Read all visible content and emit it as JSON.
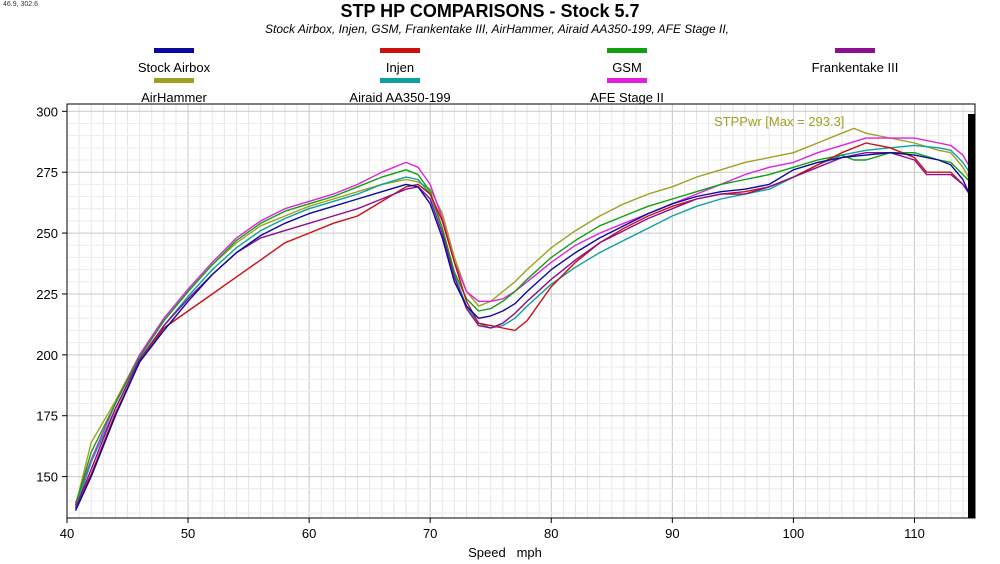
{
  "cursor_readout": "46.9, 302.6",
  "chart_data": {
    "type": "line",
    "title": "STP HP COMPARISONS - Stock 5.7",
    "subtitle": "Stock Airbox, Injen, GSM, Frankentake III, AirHammer, Airaid AA350-199, AFE Stage II,",
    "xlabel": "Speed   mph",
    "ylabel": "",
    "xlim": [
      40,
      115
    ],
    "ylim": [
      133,
      303
    ],
    "x_ticks": [
      40,
      50,
      60,
      70,
      80,
      90,
      100,
      110
    ],
    "y_ticks": [
      150,
      175,
      200,
      225,
      250,
      275,
      300
    ],
    "grid": true,
    "legend_position": "top",
    "annotation": {
      "text": "STPPwr [Max = 293.3]",
      "color": "#a0a020"
    },
    "series": [
      {
        "name": "Stock Airbox",
        "color": "#0a0aa0",
        "points": [
          [
            40.7,
            136
          ],
          [
            42,
            150
          ],
          [
            44,
            175
          ],
          [
            46,
            197
          ],
          [
            48,
            210
          ],
          [
            50,
            222
          ],
          [
            52,
            233
          ],
          [
            54,
            242
          ],
          [
            56,
            249
          ],
          [
            58,
            254
          ],
          [
            60,
            258
          ],
          [
            62,
            261
          ],
          [
            64,
            264
          ],
          [
            66,
            267
          ],
          [
            68,
            270
          ],
          [
            69,
            269
          ],
          [
            70,
            262
          ],
          [
            71,
            248
          ],
          [
            72,
            230
          ],
          [
            73,
            220
          ],
          [
            74,
            215
          ],
          [
            75,
            216
          ],
          [
            76,
            218
          ],
          [
            77,
            221
          ],
          [
            78,
            226
          ],
          [
            80,
            235
          ],
          [
            82,
            242
          ],
          [
            84,
            248
          ],
          [
            86,
            253
          ],
          [
            88,
            258
          ],
          [
            90,
            262
          ],
          [
            92,
            265
          ],
          [
            94,
            267
          ],
          [
            96,
            268
          ],
          [
            98,
            270
          ],
          [
            100,
            276
          ],
          [
            102,
            279
          ],
          [
            104,
            281
          ],
          [
            106,
            282
          ],
          [
            108,
            283
          ],
          [
            110,
            282
          ],
          [
            112,
            280
          ],
          [
            113,
            278
          ],
          [
            114,
            272
          ],
          [
            114.8,
            263
          ]
        ]
      },
      {
        "name": "Injen",
        "color": "#cc1010",
        "points": [
          [
            40.7,
            137
          ],
          [
            42,
            151
          ],
          [
            44,
            176
          ],
          [
            46,
            197
          ],
          [
            48,
            211
          ],
          [
            50,
            218
          ],
          [
            52,
            225
          ],
          [
            54,
            232
          ],
          [
            56,
            239
          ],
          [
            58,
            246
          ],
          [
            60,
            250
          ],
          [
            62,
            254
          ],
          [
            64,
            257
          ],
          [
            66,
            263
          ],
          [
            68,
            269
          ],
          [
            69,
            270
          ],
          [
            70,
            266
          ],
          [
            71,
            255
          ],
          [
            72,
            238
          ],
          [
            73,
            222
          ],
          [
            74,
            213
          ],
          [
            75,
            212
          ],
          [
            76,
            211
          ],
          [
            77,
            210
          ],
          [
            78,
            214
          ],
          [
            80,
            228
          ],
          [
            82,
            238
          ],
          [
            84,
            246
          ],
          [
            86,
            252
          ],
          [
            88,
            257
          ],
          [
            90,
            261
          ],
          [
            92,
            264
          ],
          [
            94,
            266
          ],
          [
            96,
            267
          ],
          [
            98,
            269
          ],
          [
            100,
            273
          ],
          [
            102,
            278
          ],
          [
            104,
            283
          ],
          [
            106,
            287
          ],
          [
            108,
            285
          ],
          [
            110,
            281
          ],
          [
            111,
            275
          ],
          [
            113,
            275
          ],
          [
            114,
            270
          ],
          [
            114.8,
            265
          ]
        ]
      },
      {
        "name": "GSM",
        "color": "#10a010",
        "points": [
          [
            40.7,
            138
          ],
          [
            42,
            160
          ],
          [
            44,
            180
          ],
          [
            46,
            199
          ],
          [
            48,
            214
          ],
          [
            50,
            226
          ],
          [
            52,
            237
          ],
          [
            54,
            247
          ],
          [
            56,
            254
          ],
          [
            58,
            259
          ],
          [
            60,
            262
          ],
          [
            62,
            265
          ],
          [
            64,
            269
          ],
          [
            66,
            273
          ],
          [
            68,
            276
          ],
          [
            69,
            274
          ],
          [
            70,
            267
          ],
          [
            71,
            252
          ],
          [
            72,
            234
          ],
          [
            73,
            223
          ],
          [
            74,
            218
          ],
          [
            75,
            219
          ],
          [
            76,
            222
          ],
          [
            77,
            226
          ],
          [
            78,
            231
          ],
          [
            80,
            240
          ],
          [
            82,
            247
          ],
          [
            84,
            253
          ],
          [
            86,
            257
          ],
          [
            88,
            261
          ],
          [
            90,
            264
          ],
          [
            92,
            267
          ],
          [
            94,
            270
          ],
          [
            96,
            272
          ],
          [
            98,
            274
          ],
          [
            100,
            277
          ],
          [
            102,
            280
          ],
          [
            104,
            282
          ],
          [
            105,
            280
          ],
          [
            106,
            280
          ],
          [
            108,
            283
          ],
          [
            110,
            283
          ],
          [
            112,
            280
          ],
          [
            113,
            279
          ],
          [
            114,
            274
          ],
          [
            114.8,
            270
          ]
        ]
      },
      {
        "name": "Frankentake III",
        "color": "#8a1090",
        "points": [
          [
            40.7,
            137
          ],
          [
            42,
            153
          ],
          [
            44,
            178
          ],
          [
            46,
            198
          ],
          [
            48,
            212
          ],
          [
            50,
            223
          ],
          [
            52,
            233
          ],
          [
            54,
            242
          ],
          [
            56,
            248
          ],
          [
            58,
            251
          ],
          [
            60,
            254
          ],
          [
            62,
            257
          ],
          [
            64,
            260
          ],
          [
            66,
            264
          ],
          [
            68,
            268
          ],
          [
            69,
            269
          ],
          [
            70,
            264
          ],
          [
            71,
            250
          ],
          [
            72,
            232
          ],
          [
            73,
            219
          ],
          [
            74,
            212
          ],
          [
            75,
            211
          ],
          [
            76,
            213
          ],
          [
            77,
            217
          ],
          [
            78,
            222
          ],
          [
            80,
            231
          ],
          [
            82,
            239
          ],
          [
            84,
            246
          ],
          [
            86,
            251
          ],
          [
            88,
            256
          ],
          [
            90,
            260
          ],
          [
            92,
            264
          ],
          [
            94,
            266
          ],
          [
            96,
            266
          ],
          [
            98,
            269
          ],
          [
            100,
            273
          ],
          [
            102,
            277
          ],
          [
            104,
            281
          ],
          [
            106,
            283
          ],
          [
            108,
            283
          ],
          [
            110,
            280
          ],
          [
            111,
            274
          ],
          [
            113,
            274
          ],
          [
            114,
            270
          ],
          [
            114.8,
            264
          ]
        ]
      },
      {
        "name": "AirHammer",
        "color": "#a0a020",
        "points": [
          [
            40.7,
            138
          ],
          [
            42,
            164
          ],
          [
            44,
            181
          ],
          [
            46,
            200
          ],
          [
            48,
            214
          ],
          [
            50,
            226
          ],
          [
            52,
            237
          ],
          [
            54,
            246
          ],
          [
            56,
            253
          ],
          [
            58,
            257
          ],
          [
            60,
            261
          ],
          [
            62,
            264
          ],
          [
            64,
            267
          ],
          [
            66,
            270
          ],
          [
            68,
            272
          ],
          [
            69,
            271
          ],
          [
            70,
            268
          ],
          [
            71,
            258
          ],
          [
            72,
            240
          ],
          [
            73,
            226
          ],
          [
            74,
            220
          ],
          [
            75,
            222
          ],
          [
            76,
            226
          ],
          [
            77,
            230
          ],
          [
            78,
            235
          ],
          [
            80,
            244
          ],
          [
            82,
            251
          ],
          [
            84,
            257
          ],
          [
            86,
            262
          ],
          [
            88,
            266
          ],
          [
            90,
            269
          ],
          [
            92,
            273
          ],
          [
            94,
            276
          ],
          [
            96,
            279
          ],
          [
            98,
            281
          ],
          [
            100,
            283
          ],
          [
            102,
            287
          ],
          [
            104,
            291
          ],
          [
            105,
            293
          ],
          [
            106,
            291
          ],
          [
            108,
            289
          ],
          [
            110,
            287
          ],
          [
            112,
            284
          ],
          [
            113,
            283
          ],
          [
            114,
            277
          ],
          [
            114.8,
            270
          ]
        ]
      },
      {
        "name": "Airaid AA350-199",
        "color": "#10a0a0",
        "points": [
          [
            40.7,
            137
          ],
          [
            42,
            156
          ],
          [
            44,
            178
          ],
          [
            46,
            198
          ],
          [
            48,
            212
          ],
          [
            50,
            224
          ],
          [
            52,
            235
          ],
          [
            54,
            244
          ],
          [
            56,
            251
          ],
          [
            58,
            256
          ],
          [
            60,
            260
          ],
          [
            62,
            263
          ],
          [
            64,
            266
          ],
          [
            66,
            270
          ],
          [
            68,
            273
          ],
          [
            69,
            272
          ],
          [
            70,
            266
          ],
          [
            71,
            252
          ],
          [
            72,
            233
          ],
          [
            73,
            220
          ],
          [
            74,
            213
          ],
          [
            75,
            211
          ],
          [
            76,
            212
          ],
          [
            77,
            215
          ],
          [
            78,
            220
          ],
          [
            80,
            229
          ],
          [
            82,
            236
          ],
          [
            84,
            242
          ],
          [
            86,
            247
          ],
          [
            88,
            252
          ],
          [
            90,
            257
          ],
          [
            92,
            261
          ],
          [
            94,
            264
          ],
          [
            96,
            266
          ],
          [
            98,
            268
          ],
          [
            100,
            273
          ],
          [
            102,
            278
          ],
          [
            104,
            282
          ],
          [
            106,
            284
          ],
          [
            108,
            285
          ],
          [
            110,
            286
          ],
          [
            112,
            285
          ],
          [
            113,
            284
          ],
          [
            114,
            279
          ],
          [
            114.8,
            273
          ]
        ]
      },
      {
        "name": "AFE Stage II",
        "color": "#e020e0",
        "points": [
          [
            40.7,
            139
          ],
          [
            42,
            157
          ],
          [
            44,
            180
          ],
          [
            46,
            200
          ],
          [
            48,
            215
          ],
          [
            50,
            227
          ],
          [
            52,
            238
          ],
          [
            54,
            248
          ],
          [
            56,
            255
          ],
          [
            58,
            260
          ],
          [
            60,
            263
          ],
          [
            62,
            266
          ],
          [
            64,
            270
          ],
          [
            66,
            275
          ],
          [
            68,
            279
          ],
          [
            69,
            277
          ],
          [
            70,
            270
          ],
          [
            71,
            256
          ],
          [
            72,
            238
          ],
          [
            73,
            226
          ],
          [
            74,
            222
          ],
          [
            75,
            222
          ],
          [
            76,
            223
          ],
          [
            77,
            226
          ],
          [
            78,
            230
          ],
          [
            80,
            238
          ],
          [
            82,
            245
          ],
          [
            84,
            250
          ],
          [
            86,
            254
          ],
          [
            88,
            258
          ],
          [
            90,
            262
          ],
          [
            92,
            266
          ],
          [
            94,
            270
          ],
          [
            96,
            274
          ],
          [
            98,
            277
          ],
          [
            100,
            279
          ],
          [
            102,
            283
          ],
          [
            104,
            286
          ],
          [
            106,
            289
          ],
          [
            108,
            289
          ],
          [
            110,
            289
          ],
          [
            112,
            287
          ],
          [
            113,
            286
          ],
          [
            114,
            282
          ],
          [
            114.8,
            275
          ]
        ]
      }
    ]
  }
}
